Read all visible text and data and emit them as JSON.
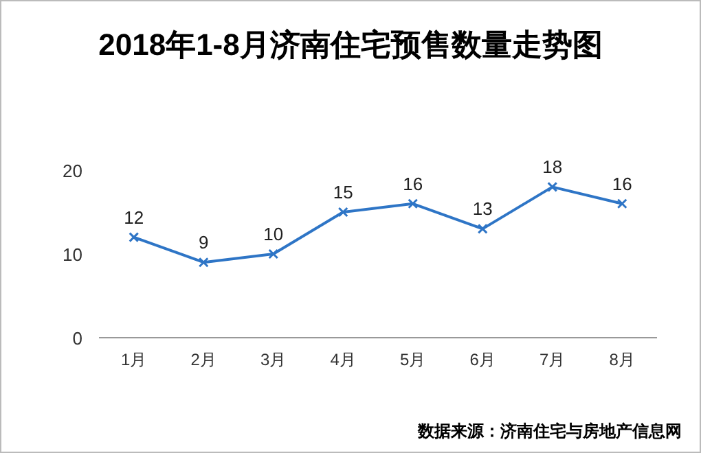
{
  "chart_data": {
    "type": "line",
    "title": "2018年1-8月济南住宅预售数量走势图",
    "categories": [
      "1月",
      "2月",
      "3月",
      "4月",
      "5月",
      "6月",
      "7月",
      "8月"
    ],
    "series": [
      {
        "color": "#2e75c6",
        "values": [
          12,
          9,
          10,
          15,
          16,
          13,
          18,
          16
        ]
      }
    ],
    "ylim": [
      0,
      20
    ],
    "yticks": [
      0,
      10,
      20
    ],
    "grid": false,
    "marker": "cross",
    "line_style": "solid",
    "data_labels": true,
    "annotations": [
      "数据来源：济南住宅与房地产信息网"
    ]
  }
}
